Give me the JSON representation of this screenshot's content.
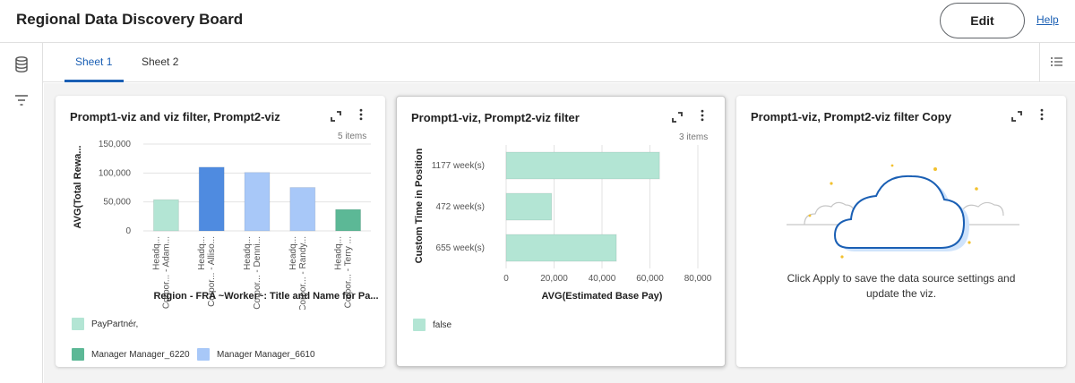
{
  "header": {
    "title": "Regional Data Discovery Board",
    "edit_label": "Edit",
    "help_label": "Help"
  },
  "left_rail": {
    "icons": [
      "database-icon",
      "filter-icon"
    ]
  },
  "tabs": [
    {
      "label": "Sheet 1",
      "active": true
    },
    {
      "label": "Sheet 2",
      "active": false
    }
  ],
  "colors": {
    "accent": "#1a5fb4",
    "mint": "#b3e5d4",
    "green": "#5cb896",
    "blue": "#4f8be0",
    "light_blue": "#a8c8f8"
  },
  "cards": [
    {
      "title": "Prompt1-viz and viz filter, Prompt2-viz",
      "items": "5 items",
      "legend": [
        {
          "label": "PayPartnér,",
          "color": "#b3e5d4"
        },
        {
          "label": "Manager Manager_6220",
          "color": "#5cb896"
        },
        {
          "label": "Manager Manager_6610",
          "color": "#a8c8f8"
        }
      ]
    },
    {
      "title": "Prompt1-viz, Prompt2-viz filter",
      "items": "3 items",
      "legend": [
        {
          "label": "false",
          "color": "#b3e5d4"
        }
      ]
    },
    {
      "title": "Prompt1-viz, Prompt2-viz filter Copy",
      "message": "Click Apply to save the data source settings and update the viz."
    }
  ],
  "chart_data": [
    {
      "type": "bar",
      "orientation": "vertical",
      "xlabel": "Region - FRA ~Worker~: Title and Name for Pa...",
      "ylabel": "AVG(Total Rewa...",
      "ylim": [
        0,
        150000
      ],
      "yticks": [
        "150,000",
        "100,000",
        "50,000",
        "0"
      ],
      "categories": [
        [
          "Headq...",
          "Corpor... - Adam..."
        ],
        [
          "Headq...",
          "Corpor... - Alliso..."
        ],
        [
          "Headq...",
          "Corpor... - Denni..."
        ],
        [
          "Headq...",
          "Corpor... - Randy..."
        ],
        [
          "Headq...",
          "Corpor... - Terry ..."
        ]
      ],
      "values": [
        54000,
        110000,
        101000,
        75000,
        37000
      ],
      "colors": [
        "#b3e5d4",
        "#4f8be0",
        "#a8c8f8",
        "#a8c8f8",
        "#5cb896"
      ]
    },
    {
      "type": "bar",
      "orientation": "horizontal",
      "xlabel": "AVG(Estimated Base Pay)",
      "ylabel": "Custom Time in Position",
      "xlim": [
        0,
        80000
      ],
      "xticks": [
        "0",
        "20,000",
        "40,000",
        "60,000",
        "80,000"
      ],
      "categories": [
        "1177 week(s)",
        "472 week(s)",
        "655 week(s)"
      ],
      "values": [
        64000,
        19000,
        46000
      ],
      "colors": [
        "#b3e5d4",
        "#b3e5d4",
        "#b3e5d4"
      ]
    }
  ]
}
